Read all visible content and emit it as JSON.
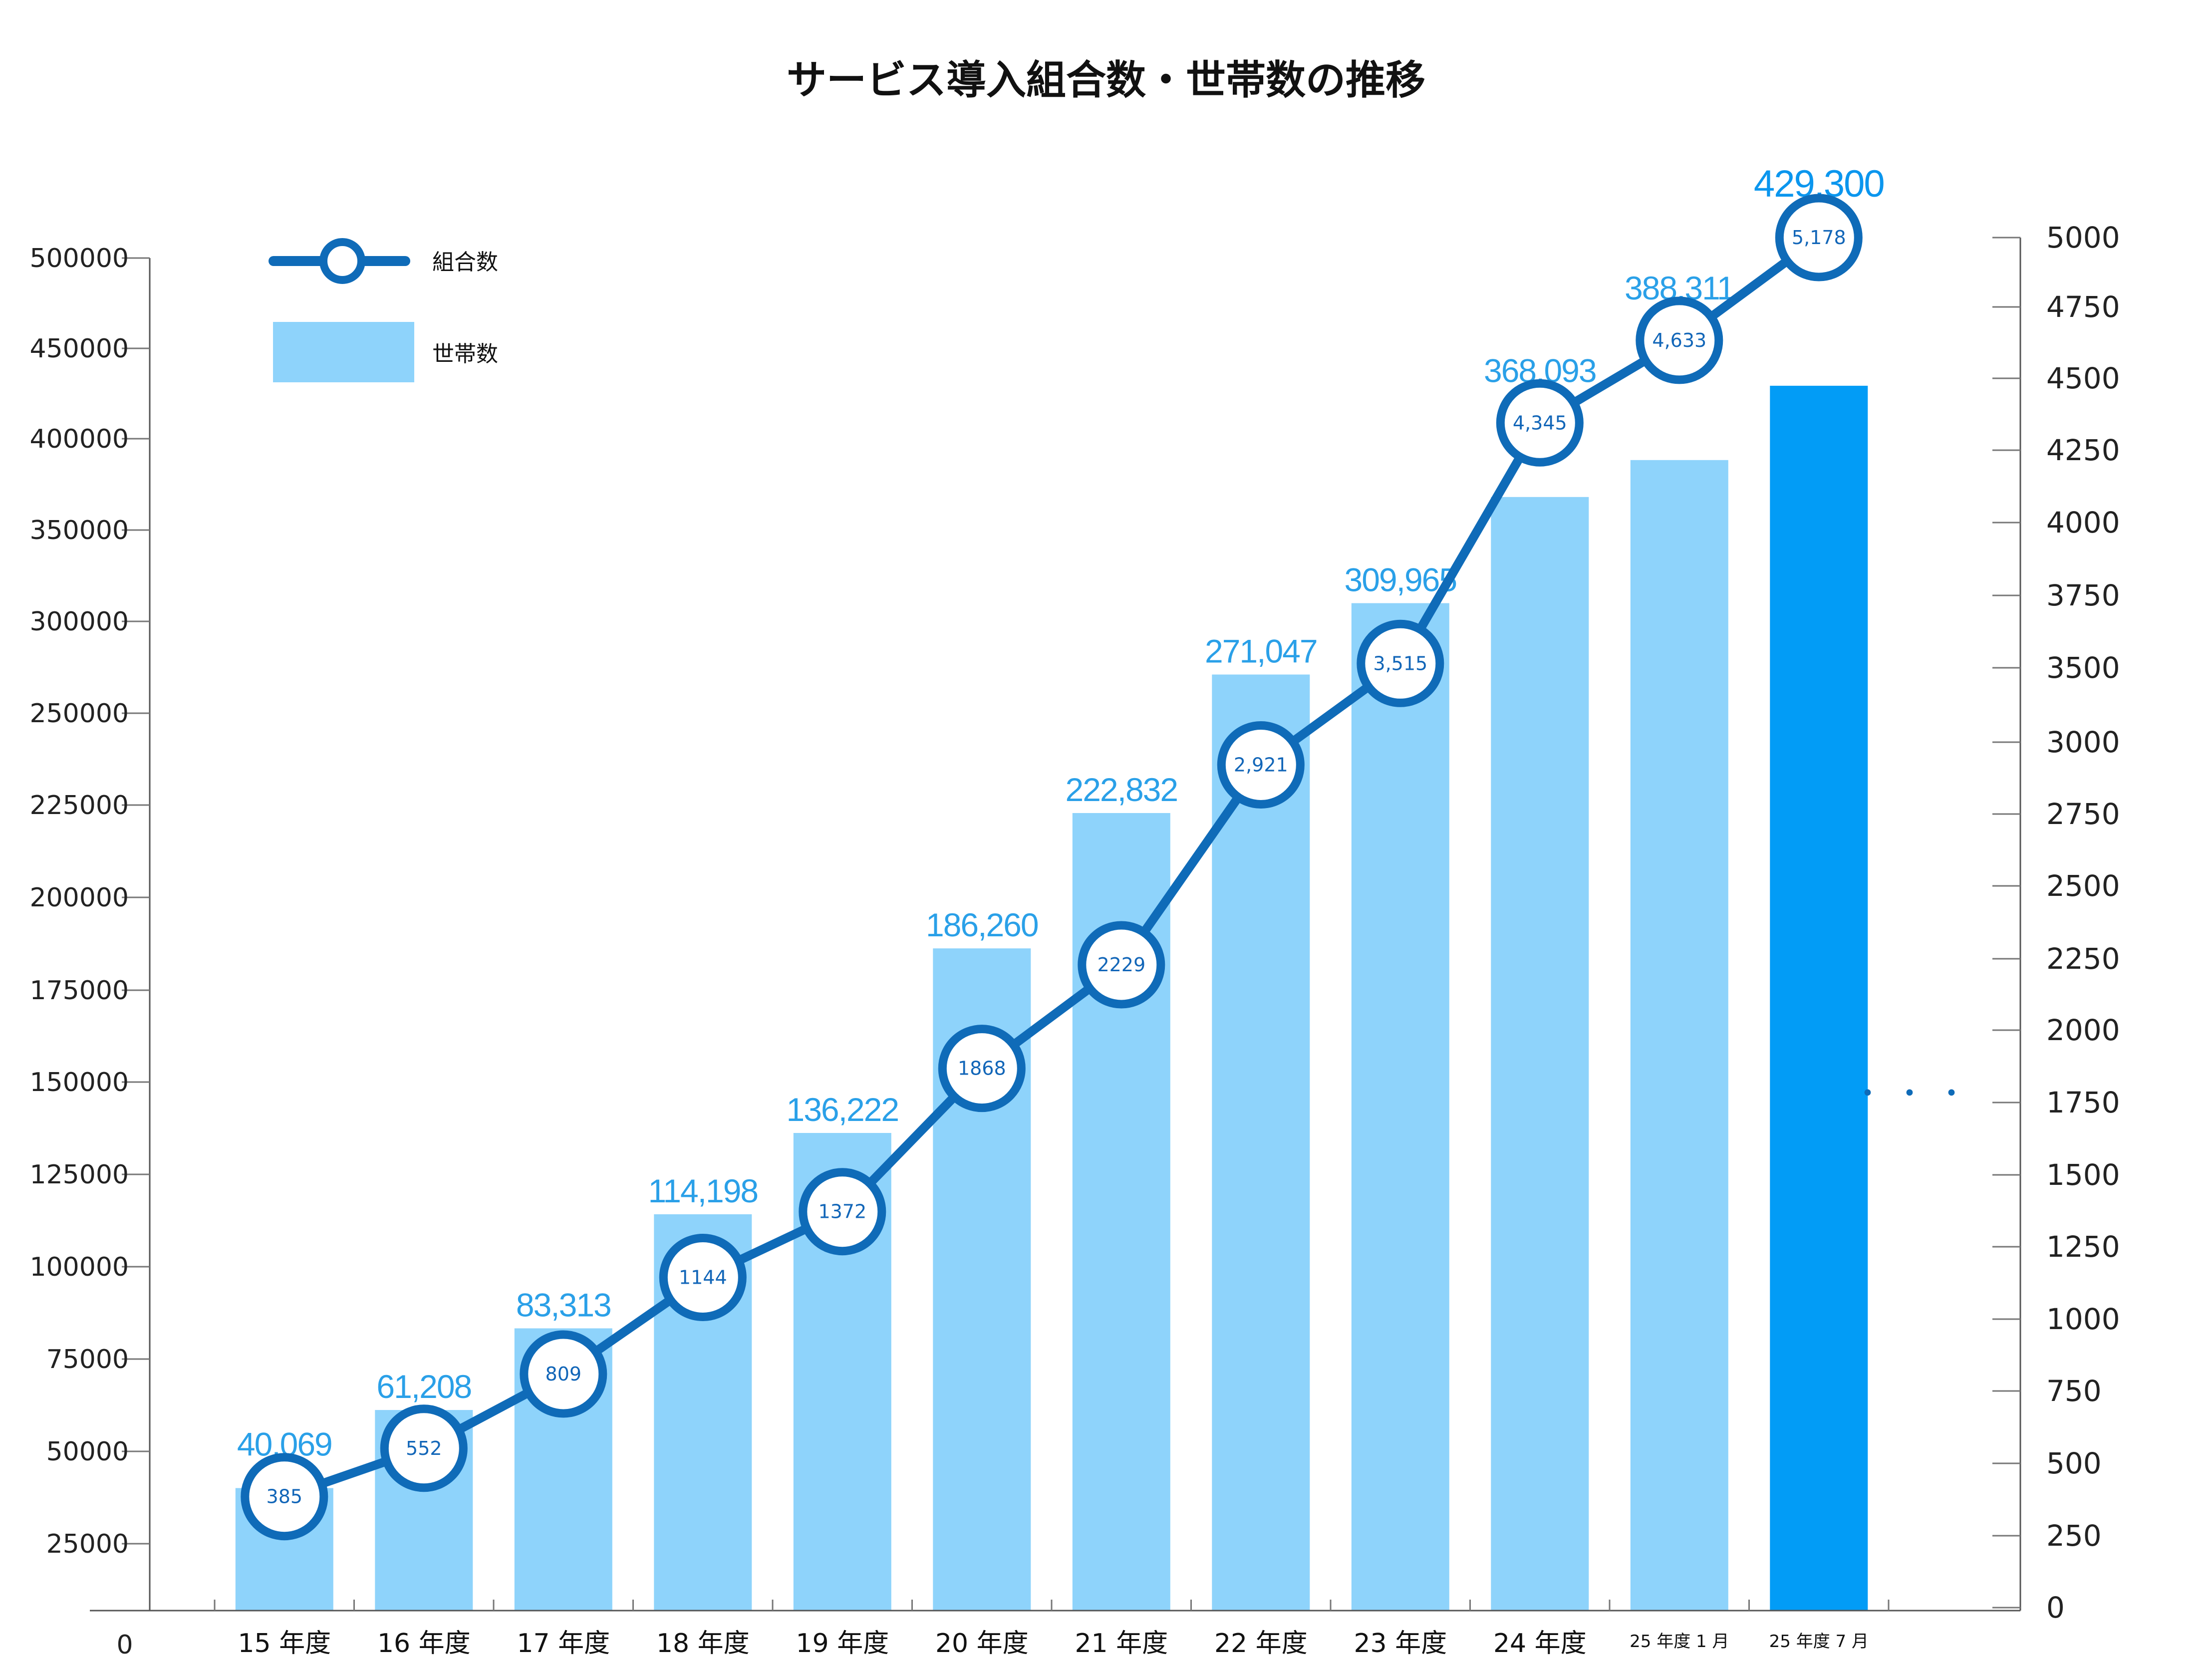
{
  "chart_data": {
    "type": "bar+line",
    "title": "サービス導入組合数・世帯数の推移",
    "categories": [
      "15 年度",
      "16 年度",
      "17 年度",
      "18 年度",
      "19 年度",
      "20 年度",
      "21 年度",
      "22 年度",
      "23 年度",
      "24 年度",
      "25 年度 1 月",
      "25 年度 7 月"
    ],
    "series": [
      {
        "name": "世帯数",
        "type": "bar",
        "axis": "left",
        "values": [
          40069,
          61208,
          83313,
          114198,
          136222,
          186260,
          222832,
          271047,
          309965,
          368093,
          388311,
          429300
        ],
        "labels": [
          "40,069",
          "61,208",
          "83,313",
          "114,198",
          "136,222",
          "186,260",
          "222,832",
          "271,047",
          "309,965",
          "368,093",
          "388,311",
          "429,300"
        ],
        "color": "#8ed3fb",
        "highlight_color": "#029cf6",
        "highlight_index": 11
      },
      {
        "name": "組合数",
        "type": "line",
        "axis": "right",
        "values": [
          385,
          552,
          809,
          1144,
          1372,
          1868,
          2229,
          2921,
          3515,
          4345,
          4633,
          5178
        ],
        "labels": [
          "385",
          "552",
          "809",
          "1144",
          "1372",
          "1868",
          "2229",
          "2,921",
          "3,515",
          "4,345",
          "4,633",
          "5,178"
        ],
        "color": "#0f6bb8"
      }
    ],
    "left_axis": {
      "ticks": [
        "0",
        "25000",
        "50000",
        "75000",
        "100000",
        "125000",
        "150000",
        "175000",
        "200000",
        "225000",
        "250000",
        "300000",
        "350000",
        "400000",
        "450000",
        "500000"
      ]
    },
    "right_axis": {
      "ticks": [
        "0",
        "250",
        "500",
        "750",
        "1000",
        "1250",
        "1500",
        "1750",
        "2000",
        "2250",
        "2500",
        "2750",
        "3000",
        "3500",
        "3750",
        "4000",
        "4250",
        "4500",
        "4750",
        "5000"
      ],
      "range": [
        0,
        5000
      ]
    },
    "legend": {
      "position": "top-left",
      "line_label": "組合数",
      "bar_label": "世帯数"
    },
    "continuation_marker": "・・・",
    "grid": false
  }
}
